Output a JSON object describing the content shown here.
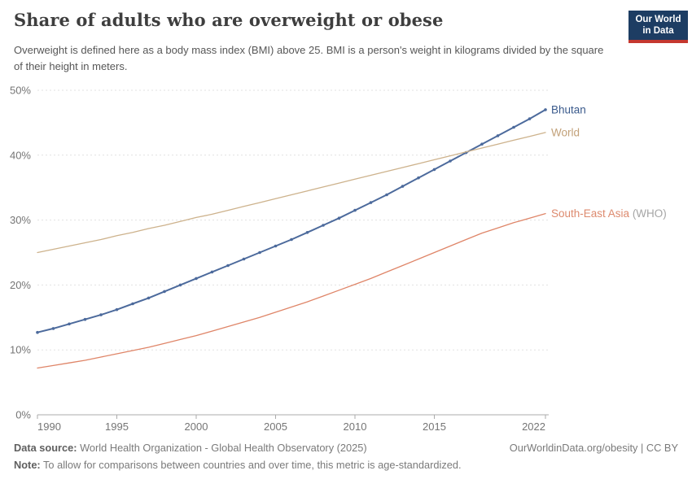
{
  "header": {
    "title": "Share of adults who are overweight or obese",
    "subtitle": "Overweight is defined here as a body mass index (BMI) above 25. BMI is a person's weight in kilograms divided by the square of their height in meters.",
    "logo": {
      "line1": "Our World",
      "line2": "in Data",
      "bg_color": "#1D3D63",
      "bar_color": "#C5382F"
    }
  },
  "chart_data": {
    "type": "line",
    "title": "Share of adults who are overweight or obese",
    "xlabel": "",
    "ylabel": "",
    "ylim": [
      0,
      50
    ],
    "grid": "horizontal-dashed",
    "legend_position": "right-of-line-ends",
    "x": [
      1990,
      1991,
      1992,
      1993,
      1994,
      1995,
      1996,
      1997,
      1998,
      1999,
      2000,
      2001,
      2002,
      2003,
      2004,
      2005,
      2006,
      2007,
      2008,
      2009,
      2010,
      2011,
      2012,
      2013,
      2014,
      2015,
      2016,
      2017,
      2018,
      2019,
      2020,
      2021,
      2022
    ],
    "xticks": [
      {
        "value": 1990,
        "label": "1990"
      },
      {
        "value": 1995,
        "label": "1995"
      },
      {
        "value": 2000,
        "label": "2000"
      },
      {
        "value": 2005,
        "label": "2005"
      },
      {
        "value": 2010,
        "label": "2010"
      },
      {
        "value": 2015,
        "label": "2015"
      },
      {
        "value": 2022,
        "label": "2022"
      }
    ],
    "yticks": [
      {
        "value": 0,
        "label": "0%"
      },
      {
        "value": 10,
        "label": "10%"
      },
      {
        "value": 20,
        "label": "20%"
      },
      {
        "value": 30,
        "label": "30%"
      },
      {
        "value": 40,
        "label": "40%"
      },
      {
        "value": 50,
        "label": "50%"
      }
    ],
    "series": [
      {
        "name": "Bhutan",
        "color": "#4C6A9C",
        "label_color": "#3A5A8C",
        "suffix": "",
        "suffix_color": "#A5A5A5",
        "markers": true,
        "line_width": 2,
        "values": [
          12.7,
          13.3,
          14.0,
          14.7,
          15.4,
          16.2,
          17.1,
          18.0,
          19.0,
          20.0,
          21.0,
          22.0,
          23.0,
          24.0,
          25.0,
          26.0,
          27.0,
          28.1,
          29.2,
          30.3,
          31.5,
          32.7,
          33.9,
          35.2,
          36.5,
          37.8,
          39.1,
          40.4,
          41.7,
          43.0,
          44.3,
          45.6,
          47.0
        ]
      },
      {
        "name": "World",
        "color": "#CDB28C",
        "label_color": "#C2A179",
        "suffix": "",
        "suffix_color": "#A5A5A5",
        "markers": false,
        "line_width": 1.3,
        "values": [
          25.0,
          25.5,
          26.0,
          26.5,
          27.0,
          27.6,
          28.1,
          28.7,
          29.2,
          29.8,
          30.4,
          30.9,
          31.5,
          32.1,
          32.7,
          33.3,
          33.9,
          34.5,
          35.1,
          35.7,
          36.3,
          36.9,
          37.5,
          38.1,
          38.7,
          39.3,
          39.9,
          40.5,
          41.1,
          41.7,
          42.3,
          42.9,
          43.5
        ]
      },
      {
        "name": "South-East Asia",
        "color": "#DF8568",
        "label_color": "#DD8A6E",
        "suffix": " (WHO)",
        "suffix_color": "#A5A5A5",
        "markers": false,
        "line_width": 1.3,
        "values": [
          7.2,
          7.6,
          8.0,
          8.4,
          8.9,
          9.4,
          9.9,
          10.4,
          11.0,
          11.6,
          12.2,
          12.9,
          13.6,
          14.3,
          15.0,
          15.8,
          16.6,
          17.4,
          18.3,
          19.2,
          20.1,
          21.0,
          22.0,
          23.0,
          24.0,
          25.0,
          26.0,
          27.0,
          28.0,
          28.8,
          29.6,
          30.3,
          31.0
        ]
      }
    ],
    "axis_colors": {
      "grid": "#E1E1E1",
      "baseline": "#ABABAB",
      "tick": "#ABABAB",
      "tick_text": "#757575"
    }
  },
  "footer": {
    "datasource_label": "Data source:",
    "datasource_text": " World Health Organization - Global Health Observatory (2025)",
    "link": "OurWorldinData.org/obesity | CC BY",
    "note_label": "Note:",
    "note_text": " To allow for comparisons between countries and over time, this metric is age-standardized."
  }
}
